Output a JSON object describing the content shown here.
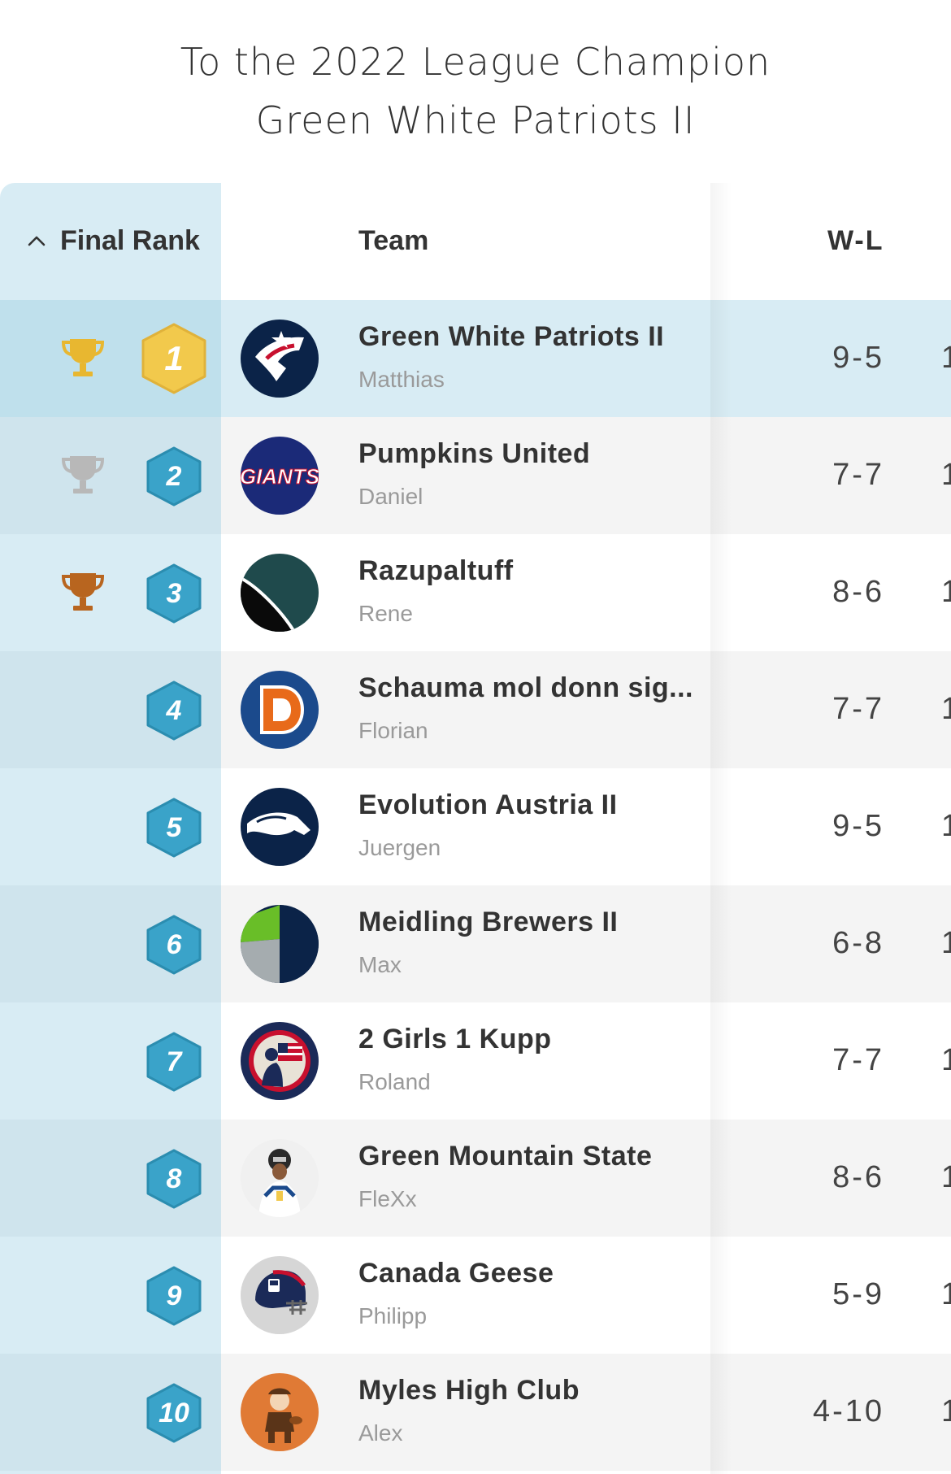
{
  "title": {
    "line1": "To the 2022 League Champion",
    "line2": "Green White Patriots II"
  },
  "header": {
    "rank_label": "Final Rank",
    "sort_icon": "chevron-up-icon",
    "team_label": "Team",
    "wl_label": "W-L"
  },
  "colors": {
    "rank_column": "#d8ecf4",
    "highlight_row": "#d8ecf4",
    "hex_gold": "#f2c94c",
    "hex_blue": "#3aa3c9",
    "trophy_gold": "#e8b730",
    "trophy_silver": "#b8b8b8",
    "trophy_bronze": "#b8651f"
  },
  "rows": [
    {
      "rank": "1",
      "trophy": "trophy-gold-icon",
      "team": "Green White Patriots II",
      "owner": "Matthias",
      "wl": "9-5",
      "next": "1",
      "logo": "patriots-logo"
    },
    {
      "rank": "2",
      "trophy": "trophy-silver-icon",
      "team": "Pumpkins United",
      "owner": "Daniel",
      "wl": "7-7",
      "next": "1",
      "logo": "giants-logo"
    },
    {
      "rank": "3",
      "trophy": "trophy-bronze-icon",
      "team": "Razupaltuff",
      "owner": "Rene",
      "wl": "8-6",
      "next": "1",
      "logo": "green-black-ball-logo"
    },
    {
      "rank": "4",
      "trophy": "",
      "team": "Schauma mol donn sig...",
      "owner": "Florian",
      "wl": "7-7",
      "next": "1",
      "logo": "broncos-d-logo"
    },
    {
      "rank": "5",
      "trophy": "",
      "team": "Evolution Austria II",
      "owner": "Juergen",
      "wl": "9-5",
      "next": "1",
      "logo": "broncos-horse-logo"
    },
    {
      "rank": "6",
      "trophy": "",
      "team": "Meidling Brewers II",
      "owner": "Max",
      "wl": "6-8",
      "next": "1",
      "logo": "seahawks-colors-logo"
    },
    {
      "rank": "7",
      "trophy": "",
      "team": "2 Girls 1 Kupp",
      "owner": "Roland",
      "wl": "7-7",
      "next": "1",
      "logo": "patriot-flag-logo"
    },
    {
      "rank": "8",
      "trophy": "",
      "team": "Green Mountain State",
      "owner": "FleXx",
      "wl": "8-6",
      "next": "1",
      "logo": "player-photo-avatar"
    },
    {
      "rank": "9",
      "trophy": "",
      "team": "Canada Geese",
      "owner": "Philipp",
      "wl": "5-9",
      "next": "1",
      "logo": "nfl-helmet-logo"
    },
    {
      "rank": "10",
      "trophy": "",
      "team": "Myles High Club",
      "owner": "Alex",
      "wl": "4-10",
      "next": "1",
      "logo": "browns-elf-logo"
    }
  ]
}
